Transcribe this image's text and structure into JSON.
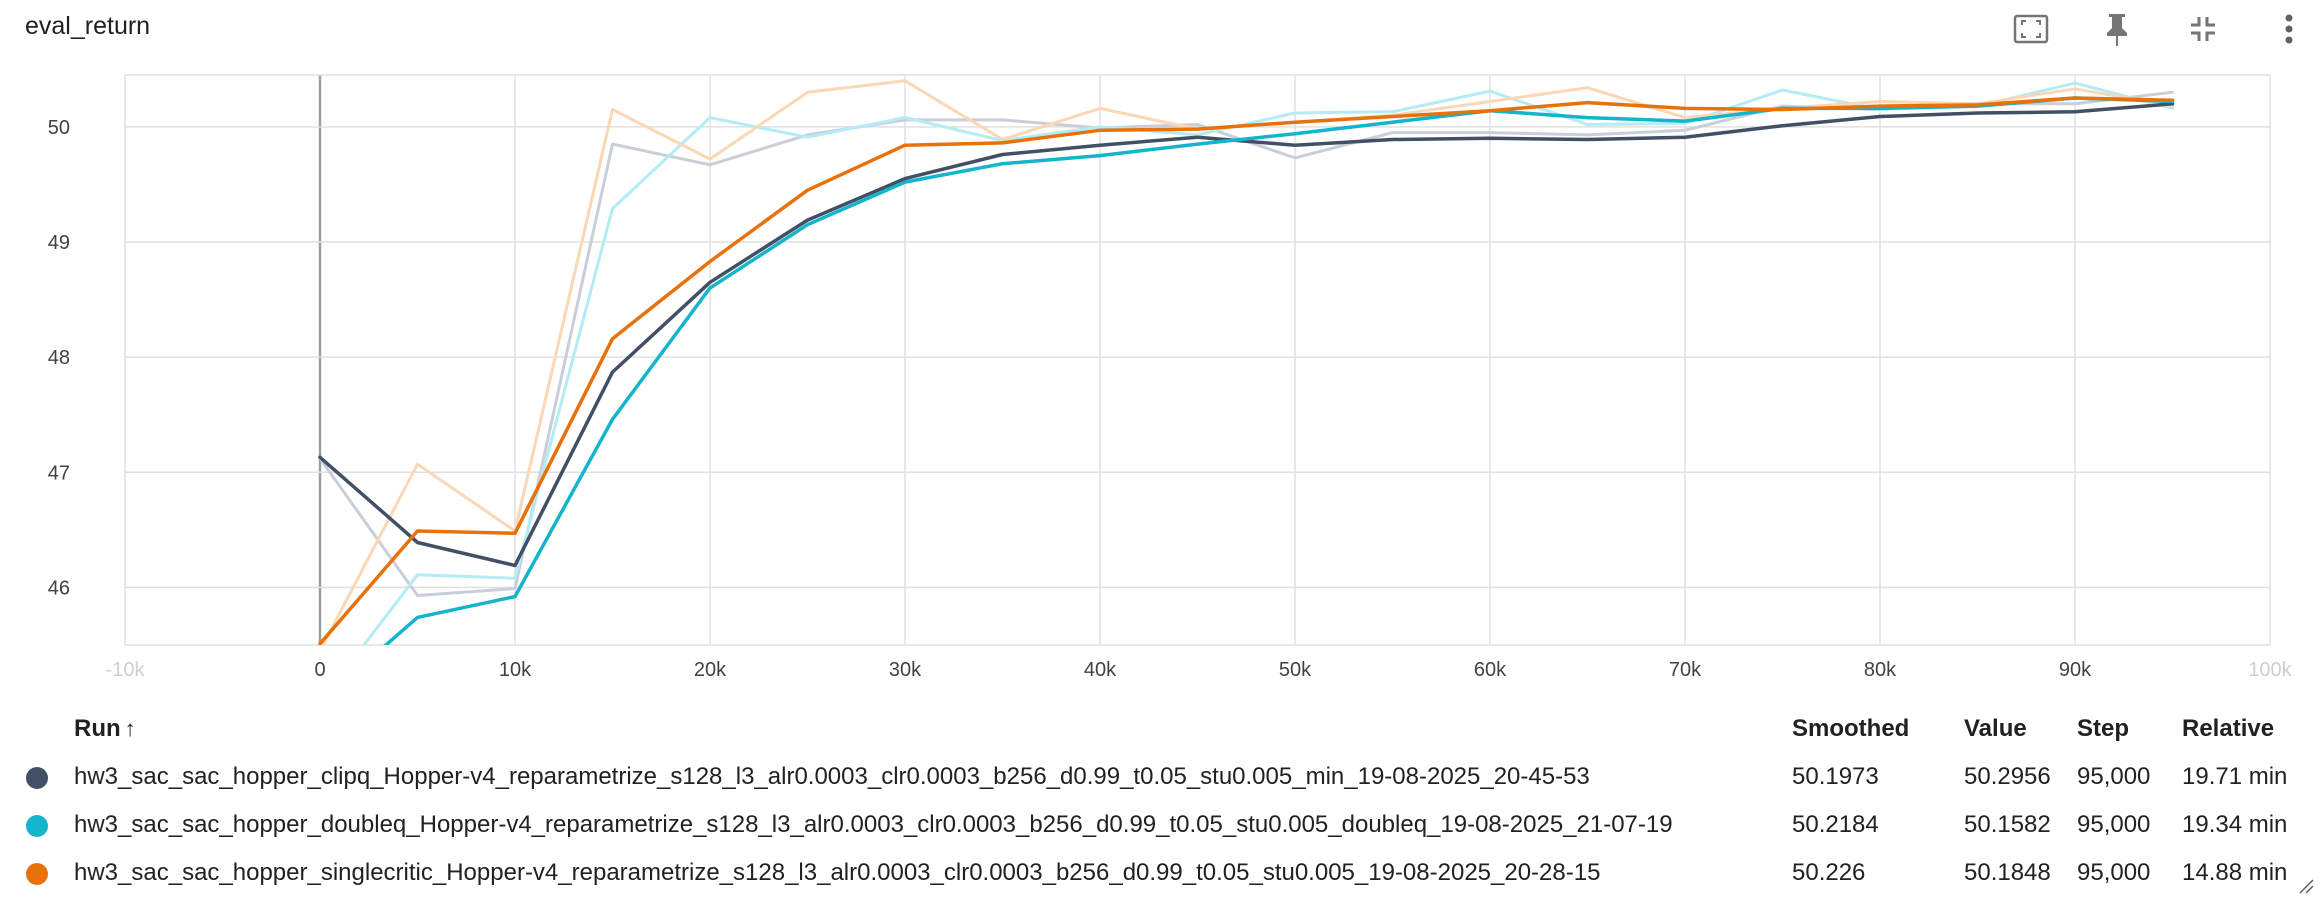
{
  "card": {
    "title": "eval_return",
    "toolbar": [
      {
        "name": "fit-domain-icon"
      },
      {
        "name": "pin-icon"
      },
      {
        "name": "collapse-icon"
      },
      {
        "name": "more-vert-icon"
      }
    ]
  },
  "colors": {
    "clipq": "#425066",
    "doubleq": "#12b5cb",
    "singlecritic": "#e8710a",
    "clipq_raw": "#c9ced8",
    "doubleq_raw": "#b3ecf4",
    "singlecritic_raw": "#fcd7b6",
    "grid": "#e0e0e0",
    "zero_axis": "#9e9e9e"
  },
  "chart_data": {
    "type": "line",
    "title": "eval_return",
    "xlabel": "",
    "ylabel": "",
    "xlim": [
      -10000,
      100000
    ],
    "ylim": [
      45.5,
      50.45
    ],
    "x_ticks": [
      -10000,
      0,
      10000,
      20000,
      30000,
      40000,
      50000,
      60000,
      70000,
      80000,
      90000,
      100000
    ],
    "x_tick_labels": [
      "-10k",
      "0",
      "10k",
      "20k",
      "30k",
      "40k",
      "50k",
      "60k",
      "70k",
      "80k",
      "90k",
      "100k"
    ],
    "y_ticks": [
      46,
      47,
      48,
      49,
      50
    ],
    "y_tick_labels": [
      "46",
      "47",
      "48",
      "49",
      "50"
    ],
    "grid": true,
    "x": [
      0,
      5000,
      10000,
      15000,
      20000,
      25000,
      30000,
      35000,
      40000,
      45000,
      50000,
      55000,
      60000,
      65000,
      70000,
      75000,
      80000,
      85000,
      90000,
      95000
    ],
    "series": [
      {
        "key": "clipq_raw",
        "values": [
          47.12,
          45.93,
          45.99,
          49.85,
          49.67,
          49.93,
          50.06,
          50.06,
          49.99,
          50.02,
          49.73,
          49.95,
          49.95,
          49.93,
          49.97,
          50.18,
          50.15,
          50.2,
          50.2,
          50.3
        ]
      },
      {
        "key": "doubleq_raw",
        "values": [
          45.0,
          46.11,
          46.08,
          49.29,
          50.08,
          49.91,
          50.08,
          49.88,
          50.0,
          49.93,
          50.12,
          50.13,
          50.31,
          50.02,
          50.03,
          50.32,
          50.15,
          50.18,
          50.38,
          50.16
        ]
      },
      {
        "key": "singlecritic_raw",
        "values": [
          45.45,
          47.07,
          46.49,
          50.15,
          49.72,
          50.3,
          50.4,
          49.89,
          50.16,
          49.98,
          50.04,
          50.1,
          50.22,
          50.34,
          50.08,
          50.16,
          50.22,
          50.2,
          50.33,
          50.18
        ]
      },
      {
        "key": "clipq",
        "values": [
          47.13,
          46.39,
          46.19,
          47.87,
          48.65,
          49.19,
          49.55,
          49.76,
          49.84,
          49.91,
          49.84,
          49.89,
          49.9,
          49.89,
          49.91,
          50.01,
          50.09,
          50.12,
          50.13,
          50.2
        ]
      },
      {
        "key": "doubleq",
        "values": [
          45.0,
          45.74,
          45.92,
          47.46,
          48.6,
          49.15,
          49.52,
          49.68,
          49.75,
          49.85,
          49.94,
          50.04,
          50.14,
          50.08,
          50.05,
          50.16,
          50.16,
          50.18,
          50.25,
          50.22
        ]
      },
      {
        "key": "singlecritic",
        "values": [
          45.51,
          46.49,
          46.47,
          48.16,
          48.83,
          49.45,
          49.84,
          49.86,
          49.97,
          49.98,
          50.04,
          50.09,
          50.14,
          50.21,
          50.16,
          50.15,
          50.18,
          50.19,
          50.25,
          50.23
        ]
      }
    ]
  },
  "table": {
    "headers": {
      "run": "Run",
      "smoothed": "Smoothed",
      "value": "Value",
      "step": "Step",
      "relative": "Relative"
    },
    "sort_indicator": "↑",
    "rows": [
      {
        "color_key": "clipq",
        "run": "hw3_sac_sac_hopper_clipq_Hopper-v4_reparametrize_s128_l3_alr0.0003_clr0.0003_b256_d0.99_t0.05_stu0.005_min_19-08-2025_20-45-53",
        "smoothed": "50.1973",
        "value": "50.2956",
        "step": "95,000",
        "relative": "19.71 min"
      },
      {
        "color_key": "doubleq",
        "run": "hw3_sac_sac_hopper_doubleq_Hopper-v4_reparametrize_s128_l3_alr0.0003_clr0.0003_b256_d0.99_t0.05_stu0.005_doubleq_19-08-2025_21-07-19",
        "smoothed": "50.2184",
        "value": "50.1582",
        "step": "95,000",
        "relative": "19.34 min"
      },
      {
        "color_key": "singlecritic",
        "run": "hw3_sac_sac_hopper_singlecritic_Hopper-v4_reparametrize_s128_l3_alr0.0003_clr0.0003_b256_d0.99_t0.05_stu0.005_19-08-2025_20-28-15",
        "smoothed": "50.226",
        "value": "50.1848",
        "step": "95,000",
        "relative": "14.88 min"
      }
    ]
  }
}
